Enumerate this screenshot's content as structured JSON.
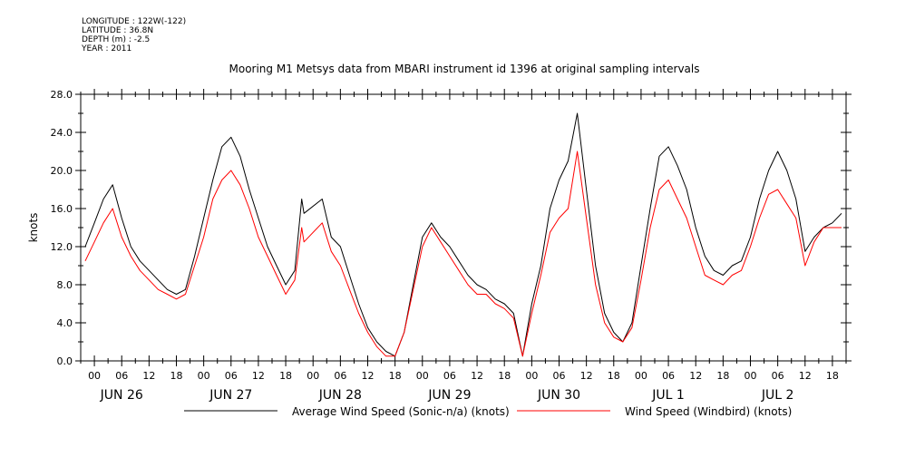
{
  "metadata": {
    "longitude": "LONGITUDE : 122W(-122)",
    "latitude": "LATITUDE : 36.8N",
    "depth": "DEPTH (m) : -2.5",
    "year": "YEAR : 2011"
  },
  "chart_data": {
    "type": "line",
    "title": "Mooring M1 Metsys data from MBARI instrument id 1396 at original sampling intervals",
    "ylabel": "knots",
    "xlabel": "",
    "ylim": [
      0,
      28
    ],
    "xlim_hours": [
      -3,
      165
    ],
    "y_ticks": [
      "0.0",
      "4.0",
      "8.0",
      "12.0",
      "16.0",
      "20.0",
      "24.0",
      "28.0"
    ],
    "x_hour_ticks": [
      "00",
      "06",
      "12",
      "18",
      "00",
      "06",
      "12",
      "18",
      "00",
      "06",
      "12",
      "18",
      "00",
      "06",
      "12",
      "18",
      "00",
      "06",
      "12",
      "18",
      "00",
      "06",
      "12",
      "18",
      "00",
      "06",
      "12",
      "18"
    ],
    "day_labels": [
      "JUN 26",
      "JUN 27",
      "JUN 28",
      "JUN 29",
      "JUN 30",
      "JUL  1",
      "JUL  2"
    ],
    "grid": false,
    "legend_position": "bottom",
    "series": [
      {
        "name": "Average Wind Speed (Sonic-n/a) (knots)",
        "color": "#000000",
        "x_hours": [
          -2,
          0,
          2,
          4,
          6,
          8,
          10,
          12,
          14,
          16,
          18,
          20,
          22,
          24,
          26,
          28,
          30,
          32,
          34,
          36,
          38,
          40,
          42,
          44,
          45.5,
          46,
          50,
          52,
          54,
          56,
          58,
          60,
          62,
          64,
          66,
          68,
          70,
          72,
          74,
          76,
          78,
          80,
          82,
          84,
          86,
          88,
          90,
          92,
          94,
          96,
          98,
          100,
          102,
          104,
          106,
          108,
          110,
          112,
          114,
          116,
          118,
          120,
          122,
          124,
          126,
          128,
          130,
          132,
          134,
          136,
          138,
          140,
          142,
          144,
          146,
          148,
          150,
          152,
          154,
          156,
          158,
          160,
          162,
          164
        ],
        "values": [
          12,
          14.5,
          17,
          18.5,
          15,
          12,
          10.5,
          9.5,
          8.5,
          7.5,
          7,
          7.5,
          11,
          15,
          19,
          22.5,
          23.5,
          21.5,
          18,
          15,
          12,
          10,
          8,
          9.5,
          17,
          15.5,
          17,
          13,
          12,
          9,
          6,
          3.5,
          2,
          1,
          0.5,
          3,
          8,
          13,
          14.5,
          13,
          12,
          10.5,
          9,
          8,
          7.5,
          6.5,
          6,
          5,
          0.5,
          6,
          10,
          16,
          19,
          21,
          26,
          18,
          10,
          5,
          3,
          2,
          4,
          10,
          16,
          21.5,
          22.5,
          20.5,
          18,
          14,
          11,
          9.5,
          9,
          10,
          10.5,
          13,
          17,
          20,
          22,
          20,
          17,
          11.5,
          13,
          14,
          14.5,
          15.5
        ]
      },
      {
        "name": "Wind Speed (Windbird) (knots)",
        "color": "#ff0000",
        "x_hours": [
          -2,
          0,
          2,
          4,
          6,
          8,
          10,
          12,
          14,
          16,
          18,
          20,
          22,
          24,
          26,
          28,
          30,
          32,
          34,
          36,
          38,
          40,
          42,
          44,
          45.5,
          46,
          50,
          52,
          54,
          56,
          58,
          60,
          62,
          64,
          66,
          68,
          70,
          72,
          74,
          76,
          78,
          80,
          82,
          84,
          86,
          88,
          90,
          92,
          94,
          96,
          98,
          100,
          102,
          104,
          106,
          108,
          110,
          112,
          114,
          116,
          118,
          120,
          122,
          124,
          126,
          128,
          130,
          132,
          134,
          136,
          138,
          140,
          142,
          144,
          146,
          148,
          150,
          152,
          154,
          156,
          158,
          160,
          162,
          164
        ],
        "values": [
          10.5,
          12.5,
          14.5,
          16,
          13,
          11,
          9.5,
          8.5,
          7.5,
          7,
          6.5,
          7,
          10,
          13,
          17,
          19,
          20,
          18.5,
          16,
          13,
          11,
          9,
          7,
          8.5,
          14,
          12.5,
          14.5,
          11.5,
          10,
          7.5,
          5,
          3,
          1.5,
          0.5,
          0.5,
          3,
          7.5,
          12,
          14,
          12.5,
          11,
          9.5,
          8,
          7,
          7,
          6,
          5.5,
          4.5,
          0.5,
          5,
          9,
          13.5,
          15,
          16,
          22,
          15,
          8,
          4,
          2.5,
          2,
          3.5,
          8.5,
          14,
          18,
          19,
          17,
          15,
          12,
          9,
          8.5,
          8,
          9,
          9.5,
          12,
          15,
          17.5,
          18,
          16.5,
          15,
          10,
          12.5,
          14,
          14,
          14
        ]
      }
    ]
  }
}
